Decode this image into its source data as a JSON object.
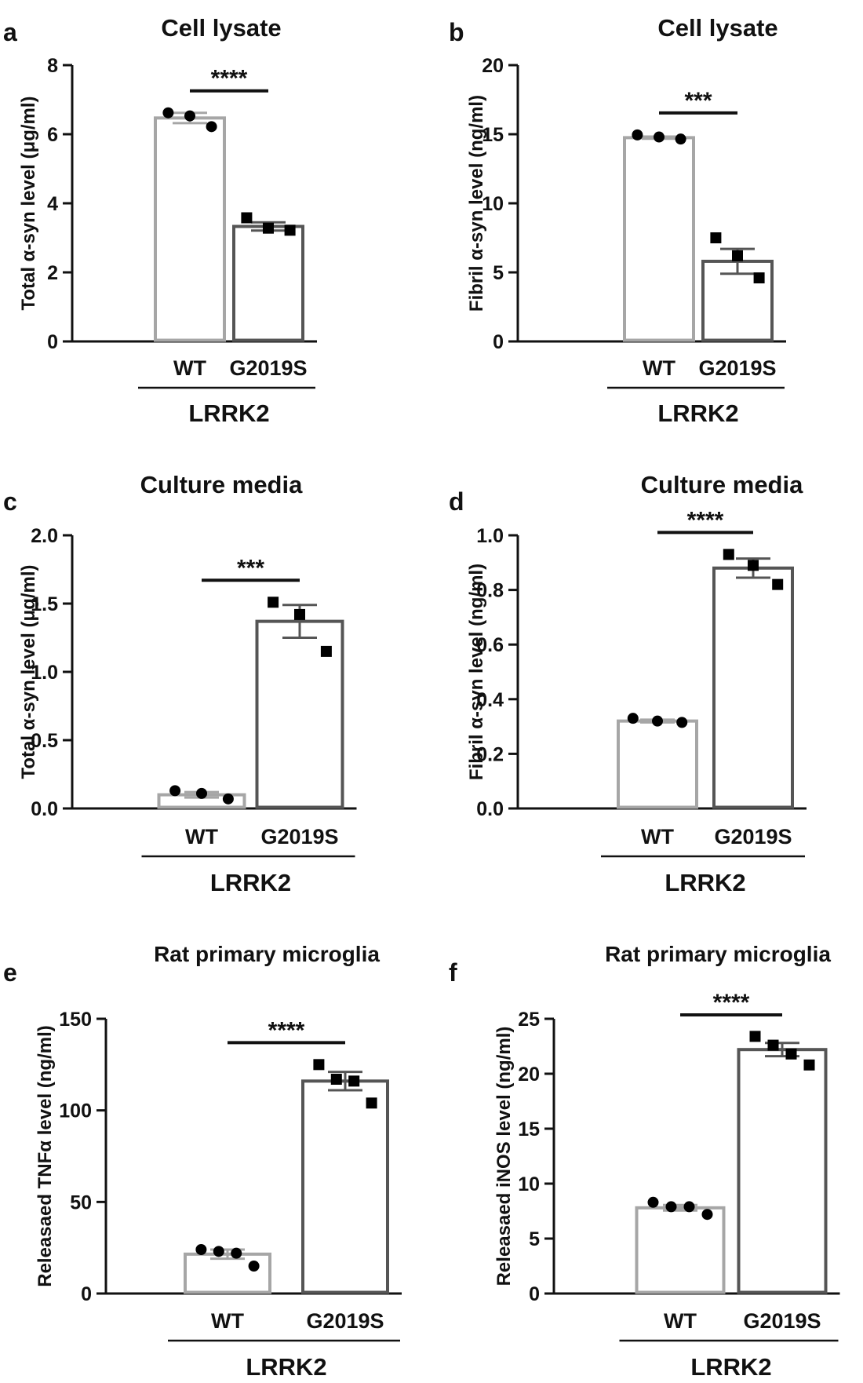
{
  "colors": {
    "wt_bar": "#a6a6a6",
    "g2019s_bar": "#555555",
    "axis": "#111111",
    "point": "#000000",
    "bar_fill": "#ffffff"
  },
  "chart_data": [
    {
      "panel": "a",
      "type": "bar",
      "title": "Cell lysate",
      "ylabel_parts": [
        "Total ",
        "α",
        "-syn level (",
        "μ",
        "g/ml)"
      ],
      "ylim": [
        0,
        8
      ],
      "yticks": [
        0,
        2,
        4,
        6,
        8
      ],
      "tick_labels": [
        "0",
        "2",
        "4",
        "6",
        "8"
      ],
      "categories": [
        "WT",
        "G2019S"
      ],
      "group_label": "LRRK2",
      "means": [
        6.47,
        3.33
      ],
      "sem": [
        0.15,
        0.12
      ],
      "points": [
        [
          6.62,
          6.53,
          6.22
        ],
        [
          3.58,
          3.28,
          3.22
        ]
      ],
      "markers": [
        "circle",
        "square"
      ],
      "significance": "****"
    },
    {
      "panel": "b",
      "type": "bar",
      "title": "Cell lysate",
      "ylabel_parts": [
        "Fibril ",
        "α",
        "-syn level (ng/ml)"
      ],
      "ylim": [
        0,
        20
      ],
      "yticks": [
        0,
        5,
        10,
        15,
        20
      ],
      "tick_labels": [
        "0",
        "5",
        "10",
        "15",
        "20"
      ],
      "categories": [
        "WT",
        "G2019S"
      ],
      "group_label": "LRRK2",
      "means": [
        14.75,
        5.8
      ],
      "sem": [
        0.08,
        0.9
      ],
      "points": [
        [
          14.95,
          14.8,
          14.65
        ],
        [
          7.5,
          6.2,
          4.6
        ]
      ],
      "markers": [
        "circle",
        "square"
      ],
      "significance": "***"
    },
    {
      "panel": "c",
      "type": "bar",
      "title": "Culture media",
      "ylabel_parts": [
        "Total ",
        "α",
        "-syn level (",
        "μ",
        "g/ml)"
      ],
      "ylim": [
        0,
        2.0
      ],
      "yticks": [
        0,
        0.5,
        1.0,
        1.5,
        2.0
      ],
      "tick_labels": [
        "0.0",
        "0.5",
        "1.0",
        "1.5",
        "2.0"
      ],
      "categories": [
        "WT",
        "G2019S"
      ],
      "group_label": "LRRK2",
      "means": [
        0.1,
        1.37
      ],
      "sem": [
        0.02,
        0.12
      ],
      "points": [
        [
          0.13,
          0.11,
          0.07
        ],
        [
          1.51,
          1.42,
          1.15
        ]
      ],
      "markers": [
        "circle",
        "square"
      ],
      "significance": "***"
    },
    {
      "panel": "d",
      "type": "bar",
      "title": "Culture media",
      "ylabel_parts": [
        "Fibril ",
        "α",
        "-syn level (ng/ml)"
      ],
      "ylim": [
        0,
        1.0
      ],
      "yticks": [
        0,
        0.2,
        0.4,
        0.6,
        0.8,
        1.0
      ],
      "tick_labels": [
        "0.0",
        "0.2",
        "0.4",
        "0.6",
        "0.8",
        "1.0"
      ],
      "categories": [
        "WT",
        "G2019S"
      ],
      "group_label": "LRRK2",
      "means": [
        0.32,
        0.88
      ],
      "sem": [
        0.005,
        0.035
      ],
      "points": [
        [
          0.33,
          0.32,
          0.315
        ],
        [
          0.93,
          0.89,
          0.82
        ]
      ],
      "markers": [
        "circle",
        "square"
      ],
      "significance": "****"
    },
    {
      "panel": "e",
      "type": "bar",
      "title": "Rat primary microglia",
      "ylabel_parts": [
        "Releasaed TNF",
        "α",
        " level (ng/ml)"
      ],
      "ylim": [
        0,
        150
      ],
      "yticks": [
        0,
        50,
        100,
        150
      ],
      "tick_labels": [
        "0",
        "50",
        "100",
        "150"
      ],
      "categories": [
        "WT",
        "G2019S"
      ],
      "group_label": "LRRK2",
      "means": [
        21.5,
        116
      ],
      "sem": [
        2.5,
        5
      ],
      "points": [
        [
          24,
          23,
          22,
          15
        ],
        [
          125,
          117,
          116,
          104
        ]
      ],
      "markers": [
        "circle",
        "square"
      ],
      "significance": "****"
    },
    {
      "panel": "f",
      "type": "bar",
      "title": "Rat primary microglia",
      "ylabel_parts": [
        "Releasaed iNOS level (ng/ml)"
      ],
      "ylim": [
        0,
        25
      ],
      "yticks": [
        0,
        5,
        10,
        15,
        20,
        25
      ],
      "tick_labels": [
        "0",
        "5",
        "10",
        "15",
        "20",
        "25"
      ],
      "categories": [
        "WT",
        "G2019S"
      ],
      "group_label": "LRRK2",
      "means": [
        7.8,
        22.2
      ],
      "sem": [
        0.25,
        0.6
      ],
      "points": [
        [
          8.3,
          7.9,
          7.9,
          7.2
        ],
        [
          23.4,
          22.6,
          21.8,
          20.8
        ]
      ],
      "markers": [
        "circle",
        "square"
      ],
      "significance": "****"
    }
  ]
}
